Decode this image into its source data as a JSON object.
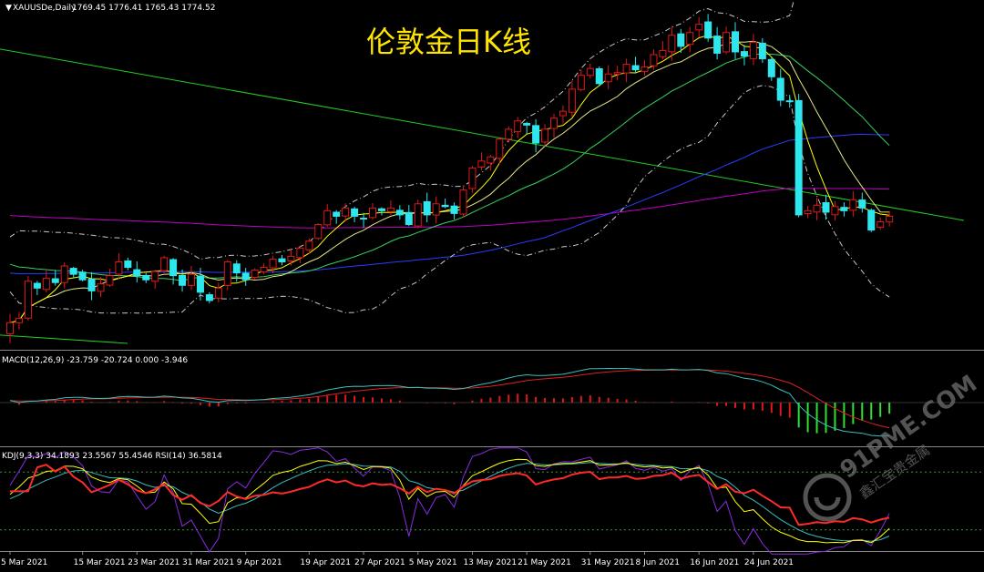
{
  "chart_data": [
    {
      "type": "candlestick",
      "panel": "price",
      "symbol_label": "XAUUSDe,Daily",
      "ohlc_label": "1769.45 1776.41 1765.43 1774.52",
      "title": "伦敦金日K线",
      "x_labels": [
        "5 Mar 2021",
        "15 Mar 2021",
        "23 Mar 2021",
        "31 Mar 2021",
        "9 Apr 2021",
        "19 Apr 2021",
        "27 Apr 2021",
        "5 May 2021",
        "13 May 2021",
        "21 May 2021",
        "31 May 2021",
        "8 Jun 2021",
        "16 Jun 2021",
        "24 Jun 2021"
      ],
      "close": [
        1697,
        1700,
        1727,
        1722,
        1729,
        1726,
        1738,
        1732,
        1728,
        1720,
        1725,
        1731,
        1741,
        1737,
        1731,
        1728,
        1734,
        1744,
        1731,
        1724,
        1732,
        1719,
        1713,
        1722,
        1741,
        1733,
        1728,
        1735,
        1737,
        1743,
        1741,
        1745,
        1751,
        1756,
        1768,
        1778,
        1774,
        1780,
        1774,
        1772,
        1780,
        1778,
        1780,
        1775,
        1768,
        1783,
        1775,
        1783,
        1781,
        1776,
        1793,
        1809,
        1814,
        1817,
        1830,
        1837,
        1843,
        1840,
        1827,
        1837,
        1845,
        1850,
        1866,
        1876,
        1881,
        1870,
        1877,
        1878,
        1884,
        1880,
        1882,
        1891,
        1894,
        1905,
        1897,
        1907,
        1913,
        1903,
        1892,
        1907,
        1893,
        1890,
        1900,
        1888,
        1875,
        1858,
        1857,
        1775,
        1778,
        1782,
        1777,
        1781,
        1778,
        1786,
        1780,
        1764,
        1770,
        1774
      ],
      "series": [
        {
          "name": "MA5",
          "color": "#ffff00"
        },
        {
          "name": "MA10",
          "color": "#e8e884"
        },
        {
          "name": "MA20",
          "color": "#35d15c"
        },
        {
          "name": "MA60",
          "color": "#2a3cff"
        },
        {
          "name": "MA120",
          "color": "#c000c0"
        },
        {
          "name": "Bollinger",
          "color": "#c8c8c8"
        },
        {
          "name": "Trendline",
          "color": "#22cc22"
        }
      ],
      "ylim": [
        1680,
        1920
      ]
    },
    {
      "type": "bar+line",
      "panel": "macd",
      "label": "MACD(12,26,9) -23.759 -20.724 0.000 -3.946",
      "series": [
        {
          "name": "MACD",
          "color": "#39c0c0"
        },
        {
          "name": "Signal",
          "color": "#e02020"
        }
      ],
      "ylim": [
        -30,
        35
      ]
    },
    {
      "type": "line",
      "panel": "kdj-rsi",
      "label": "KDJ(9,3,3) 34.1893 23.5567 55.4546 RSI(14) 36.5814",
      "series": [
        {
          "name": "K",
          "color": "#ffff00"
        },
        {
          "name": "D",
          "color": "#39c0c0"
        },
        {
          "name": "J",
          "color": "#8a2be2"
        },
        {
          "name": "RSI",
          "color": "#ff2a2a"
        }
      ],
      "levels": [
        80,
        20
      ],
      "ylim": [
        0,
        100
      ]
    }
  ],
  "watermark": {
    "brand": "91PME.COM",
    "sub": "鑫汇宝贵金属"
  }
}
